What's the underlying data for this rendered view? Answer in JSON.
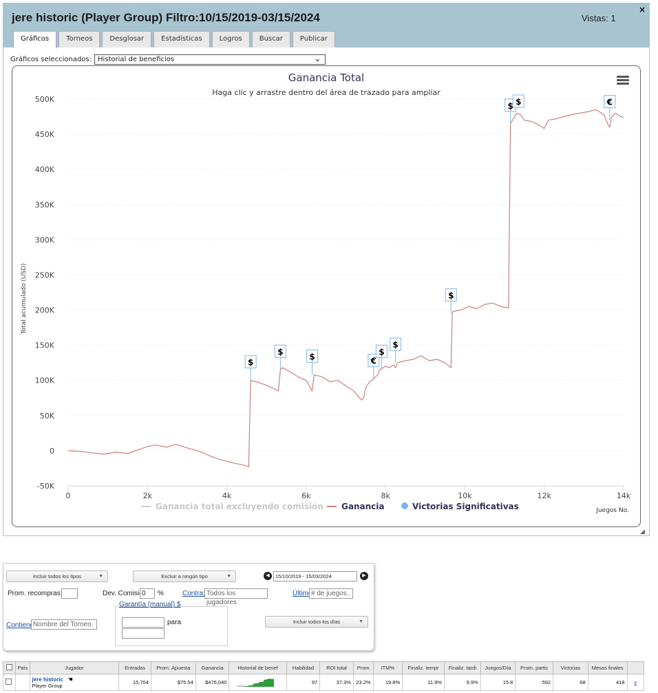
{
  "header": {
    "title": "jere historic (Player Group) Filtro:10/15/2019-03/15/2024",
    "views": "Vistas: 1",
    "close": "×"
  },
  "tabs": [
    "Gráficos",
    "Torneos",
    "Desglosar",
    "Estadísticas",
    "Logros",
    "Buscar",
    "Publicar"
  ],
  "selector": {
    "label": "Gráficos seleccionados:",
    "value": "Historial de beneficios"
  },
  "chart_data": {
    "type": "line",
    "title": "Ganancia Total",
    "subtitle": "Haga clic y arrastre dentro del área de trazado para ampliar",
    "xlabel": "Juegos No.",
    "ylabel": "Total acumulado (USD)",
    "xlim": [
      0,
      14000
    ],
    "ylim": [
      -50000,
      500000
    ],
    "xticks": [
      "0",
      "2k",
      "4k",
      "6k",
      "8k",
      "10k",
      "12k",
      "14k"
    ],
    "yticks": [
      "-50K",
      "0",
      "50K",
      "100K",
      "150K",
      "200K",
      "250K",
      "300K",
      "350K",
      "400K",
      "450K",
      "500K"
    ],
    "grid": true,
    "legend": [
      "Ganancia total excluyendo comisión",
      "Ganancia",
      "Victorias Significativas"
    ],
    "series": [
      {
        "name": "Ganancia",
        "color": "#c98080",
        "x": [
          0,
          300,
          600,
          900,
          1200,
          1500,
          1800,
          2000,
          2200,
          2500,
          2700,
          3000,
          3200,
          3400,
          3600,
          3800,
          4000,
          4200,
          4400,
          4500,
          4550,
          4600,
          4800,
          5000,
          5200,
          5300,
          5350,
          5400,
          5600,
          5800,
          6000,
          6100,
          6150,
          6200,
          6400,
          6600,
          6800,
          7000,
          7200,
          7300,
          7400,
          7450,
          7500,
          7600,
          7700,
          7800,
          7850,
          8000,
          8100,
          8200,
          8250,
          8300,
          8500,
          8700,
          8900,
          9100,
          9300,
          9500,
          9650,
          9680,
          9700,
          9900,
          10100,
          10300,
          10500,
          10700,
          10900,
          11100,
          11150,
          11200,
          11300,
          11400,
          11500,
          11700,
          11900,
          12000,
          12100,
          12300,
          12500,
          12700,
          12900,
          13100,
          13300,
          13500,
          13600,
          13650,
          13700,
          13800,
          13900,
          14000
        ],
        "y": [
          0,
          -1000,
          -3000,
          -5000,
          -2000,
          -4000,
          2000,
          6000,
          8000,
          5000,
          9000,
          4000,
          1000,
          -3000,
          -8000,
          -12000,
          -15000,
          -18000,
          -20000,
          -22000,
          -23000,
          100000,
          97000,
          93000,
          88000,
          85000,
          115000,
          118000,
          112000,
          105000,
          100000,
          90000,
          85000,
          108000,
          105000,
          98000,
          100000,
          92000,
          85000,
          78000,
          72000,
          75000,
          90000,
          98000,
          102000,
          108000,
          115000,
          120000,
          118000,
          122000,
          118000,
          125000,
          128000,
          130000,
          135000,
          128000,
          130000,
          125000,
          118000,
          195000,
          198000,
          200000,
          205000,
          202000,
          208000,
          210000,
          205000,
          203000,
          465000,
          470000,
          480000,
          478000,
          470000,
          468000,
          462000,
          458000,
          470000,
          472000,
          475000,
          478000,
          480000,
          482000,
          485000,
          478000,
          465000,
          460000,
          475000,
          480000,
          476000,
          474000
        ]
      }
    ],
    "markers": [
      {
        "x": 4600,
        "y": 100000,
        "symbol": "$"
      },
      {
        "x": 5350,
        "y": 115000,
        "symbol": "$"
      },
      {
        "x": 6150,
        "y": 108000,
        "symbol": "$"
      },
      {
        "x": 7700,
        "y": 102000,
        "symbol": "€"
      },
      {
        "x": 7900,
        "y": 115000,
        "symbol": "$"
      },
      {
        "x": 8250,
        "y": 125000,
        "symbol": "$"
      },
      {
        "x": 9650,
        "y": 195000,
        "symbol": "$"
      },
      {
        "x": 11150,
        "y": 465000,
        "symbol": "$"
      },
      {
        "x": 11350,
        "y": 490000,
        "symbol": "$"
      },
      {
        "x": 13650,
        "y": 470000,
        "symbol": "€"
      }
    ]
  },
  "filters": {
    "include_types": "Incluir todos los tipos",
    "exclude_types": "Excluir a ningún tipo",
    "date_range": "15/10/2019 - 15/03/2024",
    "prom_rebuys_label": "Prom. recompras::",
    "dev_commission_label": "Dev. Comisión::",
    "dev_commission_value": "0",
    "percent": "%",
    "contra_link": "Contra:",
    "contra_placeholder": "Todos los jugadores",
    "ultimo_link": "Último",
    "ultimo_placeholder": "# de juegos..",
    "garantia_link": "Garantía (manual) $",
    "para": "para",
    "contiene_link": "Contiene",
    "contiene_placeholder": "Nombre del Torneo.",
    "include_days": "Incluir todos los días"
  },
  "table": {
    "headers": [
      "País",
      "Jugador",
      "Entradas",
      "Prom. Apuesta",
      "Ganancia",
      "Historial de benef",
      "Habilidad",
      "ROI total",
      "Prom",
      "ITM%",
      "Finaliz. tempr",
      "Finaliz. tardi",
      "Juegos/Día",
      "Prom. partic",
      "Victorias",
      "Mesas finales"
    ],
    "row": {
      "player": "jere historic",
      "group": "Player Group",
      "entries": "15,704",
      "avg_stake": "$75.54",
      "profit": "$476,040",
      "skill": "97",
      "roi": "37.3%",
      "prom": "23.2%",
      "itm": "19.8%",
      "early": "11.9%",
      "late": "9.9%",
      "games_day": "15.8",
      "avg_field": "592",
      "wins": "68",
      "final_tables": "418",
      "remove": "x"
    }
  }
}
